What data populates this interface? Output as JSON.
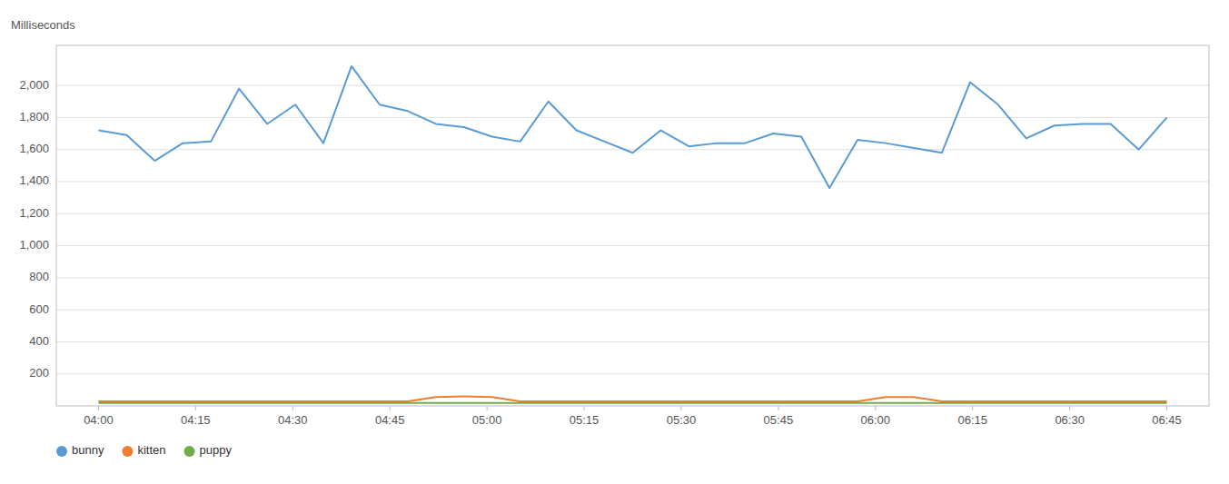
{
  "chart_data": {
    "type": "line",
    "y_label": "Milliseconds",
    "x": [
      0,
      1,
      2,
      3,
      4,
      5,
      6,
      7,
      8,
      9,
      10,
      11,
      12,
      13,
      14,
      15,
      16,
      17,
      18,
      19,
      20,
      21,
      22,
      23,
      24,
      25,
      26,
      27,
      28,
      29,
      30,
      31,
      32,
      33,
      34,
      35,
      36,
      37,
      38
    ],
    "xlim": [
      -1.5,
      39.5
    ],
    "xticks": [
      {
        "value": 0,
        "label": "04:00"
      },
      {
        "value": 3.4545454545454546,
        "label": "04:15"
      },
      {
        "value": 6.909090909090909,
        "label": "04:30"
      },
      {
        "value": 10.363636363636363,
        "label": "04:45"
      },
      {
        "value": 13.818181818181818,
        "label": "05:00"
      },
      {
        "value": 17.272727272727273,
        "label": "05:15"
      },
      {
        "value": 20.727272727272727,
        "label": "05:30"
      },
      {
        "value": 24.181818181818183,
        "label": "05:45"
      },
      {
        "value": 27.636363636363637,
        "label": "06:00"
      },
      {
        "value": 31.09090909090909,
        "label": "06:15"
      },
      {
        "value": 34.54545454545455,
        "label": "06:30"
      },
      {
        "value": 38,
        "label": "06:45"
      }
    ],
    "ylim": [
      0,
      2250
    ],
    "yticks": [
      200,
      400,
      600,
      800,
      {
        "value": 1000,
        "label": "1,000"
      },
      {
        "value": 1200,
        "label": "1,200"
      },
      {
        "value": 1400,
        "label": "1,400"
      },
      {
        "value": 1600,
        "label": "1,600"
      },
      {
        "value": 1800,
        "label": "1,800"
      },
      {
        "value": 2000,
        "label": "2,000"
      }
    ],
    "grid": true,
    "legend": "lower left",
    "series": [
      {
        "name": "bunny",
        "color": "#5b9bd5",
        "values": [
          1720,
          1690,
          1530,
          1640,
          1650,
          1980,
          1760,
          1880,
          1640,
          2120,
          1880,
          1840,
          1760,
          1740,
          1680,
          1650,
          1900,
          1720,
          1650,
          1580,
          1720,
          1620,
          1640,
          1640,
          1700,
          1680,
          1360,
          1660,
          1640,
          1610,
          1580,
          2020,
          1880,
          1670,
          1750,
          1760,
          1760,
          1600,
          1800
        ]
      },
      {
        "name": "kitten",
        "color": "#ed7d31",
        "values": [
          28,
          28,
          28,
          28,
          28,
          28,
          28,
          28,
          28,
          28,
          28,
          28,
          55,
          60,
          55,
          28,
          28,
          28,
          28,
          28,
          28,
          28,
          28,
          28,
          28,
          28,
          28,
          28,
          55,
          55,
          28,
          28,
          28,
          28,
          28,
          28,
          28,
          28,
          28
        ]
      },
      {
        "name": "puppy",
        "color": "#70ad47",
        "values": [
          18,
          18,
          18,
          18,
          18,
          18,
          18,
          18,
          18,
          18,
          18,
          18,
          18,
          18,
          18,
          18,
          18,
          18,
          18,
          18,
          18,
          18,
          18,
          18,
          18,
          18,
          18,
          18,
          18,
          18,
          18,
          18,
          18,
          18,
          18,
          18,
          18,
          18,
          18
        ]
      }
    ]
  }
}
